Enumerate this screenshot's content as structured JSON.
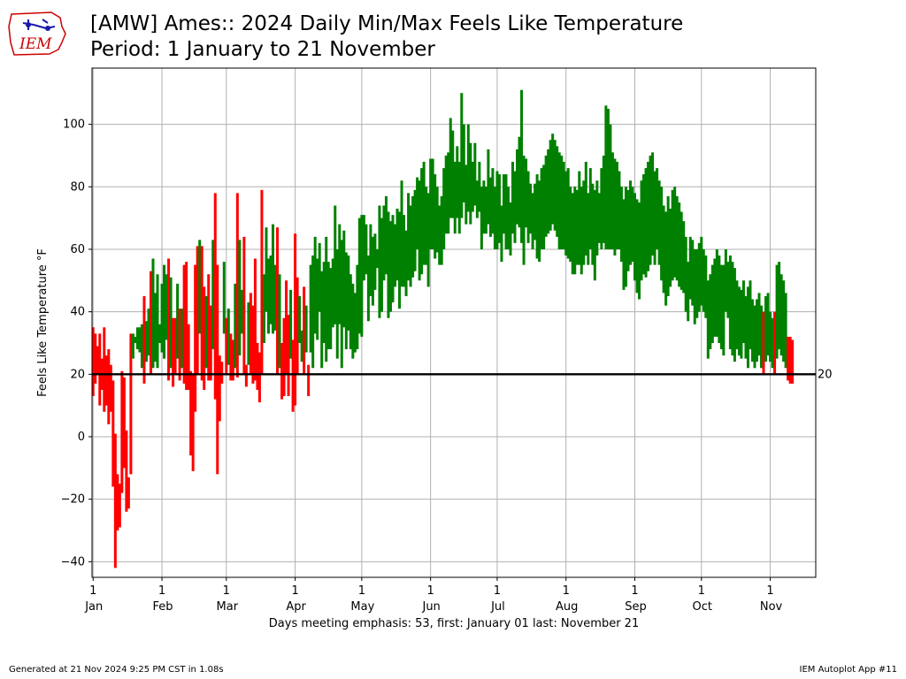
{
  "header": {
    "logo_text": "IEM",
    "title_line1": "[AMW] Ames:: 2024 Daily Min/Max Feels Like Temperature",
    "title_line2": "Period: 1 January to 21 November"
  },
  "footer": {
    "generated": "Generated at 21 Nov 2024 9:25 PM CST in 1.08s",
    "app": "IEM Autoplot App #11"
  },
  "colors": {
    "emphasis_below": "#ff0000",
    "above": "#008000",
    "threshold_line": "#000000",
    "grid": "#b0b0b0",
    "logo": "#cc0000"
  },
  "chart_data": {
    "type": "bar",
    "ylabel": "Feels Like Temperature °F",
    "xlabel": "Days meeting emphasis: 53, first: January 01 last: November 21",
    "ylim": [
      -45,
      118
    ],
    "xlim_days": [
      -0.5,
      325.5
    ],
    "yticks": [
      -40,
      -20,
      0,
      20,
      40,
      60,
      80,
      100
    ],
    "month_ticks": [
      {
        "day": 0,
        "day_label": "1",
        "month_label": "Jan"
      },
      {
        "day": 31,
        "day_label": "1",
        "month_label": "Feb"
      },
      {
        "day": 60,
        "day_label": "1",
        "month_label": "Mar"
      },
      {
        "day": 91,
        "day_label": "1",
        "month_label": "Apr"
      },
      {
        "day": 121,
        "day_label": "1",
        "month_label": "May"
      },
      {
        "day": 152,
        "day_label": "1",
        "month_label": "Jun"
      },
      {
        "day": 182,
        "day_label": "1",
        "month_label": "Jul"
      },
      {
        "day": 213,
        "day_label": "1",
        "month_label": "Aug"
      },
      {
        "day": 244,
        "day_label": "1",
        "month_label": "Sep"
      },
      {
        "day": 274,
        "day_label": "1",
        "month_label": "Oct"
      },
      {
        "day": 305,
        "day_label": "1",
        "month_label": "Nov"
      }
    ],
    "threshold": 20,
    "threshold_label": "20",
    "grid": true,
    "series_min_max": [
      [
        13,
        35
      ],
      [
        17,
        33
      ],
      [
        20,
        29
      ],
      [
        10,
        33
      ],
      [
        15,
        25
      ],
      [
        8,
        35
      ],
      [
        10,
        26
      ],
      [
        4,
        28
      ],
      [
        8,
        23
      ],
      [
        -16,
        18
      ],
      [
        -42,
        1
      ],
      [
        -30,
        -12
      ],
      [
        -29,
        -15
      ],
      [
        -18,
        21
      ],
      [
        -10,
        19
      ],
      [
        -24,
        2
      ],
      [
        -23,
        -13
      ],
      [
        -12,
        33
      ],
      [
        25,
        33
      ],
      [
        30,
        32
      ],
      [
        28,
        35
      ],
      [
        27,
        35
      ],
      [
        22,
        36
      ],
      [
        17,
        45
      ],
      [
        24,
        37
      ],
      [
        26,
        41
      ],
      [
        20,
        53
      ],
      [
        22,
        57
      ],
      [
        24,
        46
      ],
      [
        22,
        52
      ],
      [
        30,
        36
      ],
      [
        27,
        49
      ],
      [
        25,
        55
      ],
      [
        31,
        52
      ],
      [
        18,
        57
      ],
      [
        22,
        51
      ],
      [
        16,
        38
      ],
      [
        20,
        38
      ],
      [
        25,
        49
      ],
      [
        18,
        41
      ],
      [
        22,
        41
      ],
      [
        17,
        55
      ],
      [
        15,
        56
      ],
      [
        15,
        36
      ],
      [
        -6,
        21
      ],
      [
        -11,
        20
      ],
      [
        8,
        55
      ],
      [
        20,
        61
      ],
      [
        33,
        63
      ],
      [
        18,
        61
      ],
      [
        15,
        48
      ],
      [
        22,
        45
      ],
      [
        18,
        52
      ],
      [
        18,
        42
      ],
      [
        28,
        63
      ],
      [
        12,
        78
      ],
      [
        -12,
        55
      ],
      [
        5,
        26
      ],
      [
        17,
        24
      ],
      [
        33,
        56
      ],
      [
        20,
        38
      ],
      [
        23,
        41
      ],
      [
        18,
        33
      ],
      [
        18,
        31
      ],
      [
        22,
        49
      ],
      [
        19,
        78
      ],
      [
        26,
        63
      ],
      [
        33,
        47
      ],
      [
        20,
        64
      ],
      [
        16,
        23
      ],
      [
        23,
        43
      ],
      [
        20,
        46
      ],
      [
        17,
        42
      ],
      [
        18,
        57
      ],
      [
        15,
        30
      ],
      [
        11,
        27
      ],
      [
        20,
        79
      ],
      [
        30,
        52
      ],
      [
        40,
        67
      ],
      [
        33,
        57
      ],
      [
        36,
        58
      ],
      [
        33,
        68
      ],
      [
        34,
        55
      ],
      [
        20,
        67
      ],
      [
        22,
        52
      ],
      [
        12,
        30
      ],
      [
        13,
        38
      ],
      [
        20,
        50
      ],
      [
        13,
        39
      ],
      [
        25,
        47
      ],
      [
        8,
        31
      ],
      [
        10,
        65
      ],
      [
        20,
        51
      ],
      [
        30,
        45
      ],
      [
        24,
        34
      ],
      [
        20,
        48
      ],
      [
        27,
        42
      ],
      [
        13,
        23
      ],
      [
        27,
        55
      ],
      [
        22,
        58
      ],
      [
        33,
        64
      ],
      [
        31,
        57
      ],
      [
        40,
        62
      ],
      [
        22,
        53
      ],
      [
        30,
        56
      ],
      [
        24,
        64
      ],
      [
        28,
        56
      ],
      [
        28,
        54
      ],
      [
        35,
        57
      ],
      [
        36,
        74
      ],
      [
        25,
        60
      ],
      [
        36,
        68
      ],
      [
        22,
        63
      ],
      [
        35,
        66
      ],
      [
        28,
        59
      ],
      [
        34,
        58
      ],
      [
        28,
        52
      ],
      [
        25,
        49
      ],
      [
        27,
        46
      ],
      [
        28,
        55
      ],
      [
        33,
        70
      ],
      [
        32,
        71
      ],
      [
        50,
        71
      ],
      [
        52,
        68
      ],
      [
        37,
        58
      ],
      [
        45,
        68
      ],
      [
        42,
        64
      ],
      [
        47,
        65
      ],
      [
        54,
        60
      ],
      [
        38,
        74
      ],
      [
        40,
        70
      ],
      [
        50,
        74
      ],
      [
        52,
        77
      ],
      [
        38,
        72
      ],
      [
        40,
        69
      ],
      [
        43,
        71
      ],
      [
        48,
        68
      ],
      [
        50,
        73
      ],
      [
        41,
        72
      ],
      [
        48,
        82
      ],
      [
        48,
        71
      ],
      [
        45,
        66
      ],
      [
        50,
        78
      ],
      [
        48,
        74
      ],
      [
        51,
        77
      ],
      [
        53,
        79
      ],
      [
        60,
        83
      ],
      [
        50,
        82
      ],
      [
        52,
        86
      ],
      [
        55,
        88
      ],
      [
        55,
        80
      ],
      [
        48,
        78
      ],
      [
        60,
        89
      ],
      [
        60,
        89
      ],
      [
        57,
        84
      ],
      [
        59,
        80
      ],
      [
        55,
        74
      ],
      [
        55,
        77
      ],
      [
        60,
        86
      ],
      [
        65,
        90
      ],
      [
        65,
        91
      ],
      [
        70,
        102
      ],
      [
        70,
        98
      ],
      [
        65,
        88
      ],
      [
        70,
        93
      ],
      [
        65,
        88
      ],
      [
        70,
        110
      ],
      [
        75,
        100
      ],
      [
        68,
        87
      ],
      [
        72,
        100
      ],
      [
        68,
        94
      ],
      [
        72,
        88
      ],
      [
        74,
        94
      ],
      [
        70,
        82
      ],
      [
        72,
        88
      ],
      [
        60,
        80
      ],
      [
        65,
        82
      ],
      [
        65,
        80
      ],
      [
        68,
        92
      ],
      [
        64,
        83
      ],
      [
        65,
        86
      ],
      [
        60,
        80
      ],
      [
        60,
        85
      ],
      [
        62,
        84
      ],
      [
        56,
        74
      ],
      [
        65,
        84
      ],
      [
        60,
        84
      ],
      [
        60,
        80
      ],
      [
        58,
        75
      ],
      [
        65,
        88
      ],
      [
        62,
        85
      ],
      [
        68,
        92
      ],
      [
        67,
        96
      ],
      [
        62,
        111
      ],
      [
        55,
        90
      ],
      [
        67,
        89
      ],
      [
        62,
        85
      ],
      [
        65,
        81
      ],
      [
        60,
        78
      ],
      [
        63,
        81
      ],
      [
        57,
        84
      ],
      [
        56,
        82
      ],
      [
        60,
        86
      ],
      [
        60,
        87
      ],
      [
        64,
        90
      ],
      [
        65,
        92
      ],
      [
        66,
        95
      ],
      [
        68,
        97
      ],
      [
        66,
        95
      ],
      [
        64,
        93
      ],
      [
        60,
        91
      ],
      [
        60,
        90
      ],
      [
        60,
        88
      ],
      [
        58,
        85
      ],
      [
        57,
        86
      ],
      [
        56,
        80
      ],
      [
        52,
        78
      ],
      [
        52,
        80
      ],
      [
        55,
        79
      ],
      [
        55,
        85
      ],
      [
        52,
        80
      ],
      [
        55,
        82
      ],
      [
        58,
        88
      ],
      [
        55,
        78
      ],
      [
        60,
        86
      ],
      [
        55,
        81
      ],
      [
        50,
        79
      ],
      [
        58,
        82
      ],
      [
        62,
        78
      ],
      [
        60,
        86
      ],
      [
        62,
        90
      ],
      [
        60,
        106
      ],
      [
        60,
        105
      ],
      [
        60,
        100
      ],
      [
        60,
        91
      ],
      [
        58,
        89
      ],
      [
        60,
        88
      ],
      [
        60,
        85
      ],
      [
        56,
        80
      ],
      [
        47,
        76
      ],
      [
        48,
        80
      ],
      [
        53,
        79
      ],
      [
        55,
        82
      ],
      [
        56,
        80
      ],
      [
        50,
        78
      ],
      [
        46,
        76
      ],
      [
        44,
        75
      ],
      [
        50,
        82
      ],
      [
        52,
        84
      ],
      [
        51,
        86
      ],
      [
        53,
        88
      ],
      [
        55,
        90
      ],
      [
        58,
        91
      ],
      [
        55,
        85
      ],
      [
        60,
        86
      ],
      [
        55,
        82
      ],
      [
        50,
        80
      ],
      [
        46,
        74
      ],
      [
        42,
        72
      ],
      [
        45,
        77
      ],
      [
        48,
        73
      ],
      [
        50,
        79
      ],
      [
        51,
        80
      ],
      [
        50,
        77
      ],
      [
        48,
        75
      ],
      [
        47,
        72
      ],
      [
        46,
        69
      ],
      [
        40,
        64
      ],
      [
        37,
        56
      ],
      [
        44,
        64
      ],
      [
        42,
        63
      ],
      [
        36,
        60
      ],
      [
        38,
        60
      ],
      [
        40,
        62
      ],
      [
        42,
        64
      ],
      [
        40,
        60
      ],
      [
        38,
        58
      ],
      [
        25,
        50
      ],
      [
        28,
        52
      ],
      [
        30,
        55
      ],
      [
        32,
        57
      ],
      [
        32,
        60
      ],
      [
        30,
        58
      ],
      [
        28,
        55
      ],
      [
        26,
        55
      ],
      [
        40,
        60
      ],
      [
        38,
        56
      ],
      [
        28,
        58
      ],
      [
        26,
        56
      ],
      [
        24,
        54
      ],
      [
        28,
        50
      ],
      [
        26,
        48
      ],
      [
        25,
        47
      ],
      [
        30,
        50
      ],
      [
        25,
        45
      ],
      [
        22,
        48
      ],
      [
        28,
        50
      ],
      [
        24,
        44
      ],
      [
        22,
        42
      ],
      [
        24,
        44
      ],
      [
        26,
        46
      ],
      [
        22,
        42
      ],
      [
        20,
        40
      ],
      [
        24,
        45
      ],
      [
        26,
        46
      ],
      [
        24,
        40
      ],
      [
        22,
        38
      ],
      [
        20,
        40
      ],
      [
        25,
        55
      ],
      [
        28,
        56
      ],
      [
        26,
        52
      ],
      [
        24,
        50
      ],
      [
        22,
        46
      ],
      [
        18,
        32
      ],
      [
        17,
        32
      ],
      [
        17,
        31
      ]
    ]
  }
}
